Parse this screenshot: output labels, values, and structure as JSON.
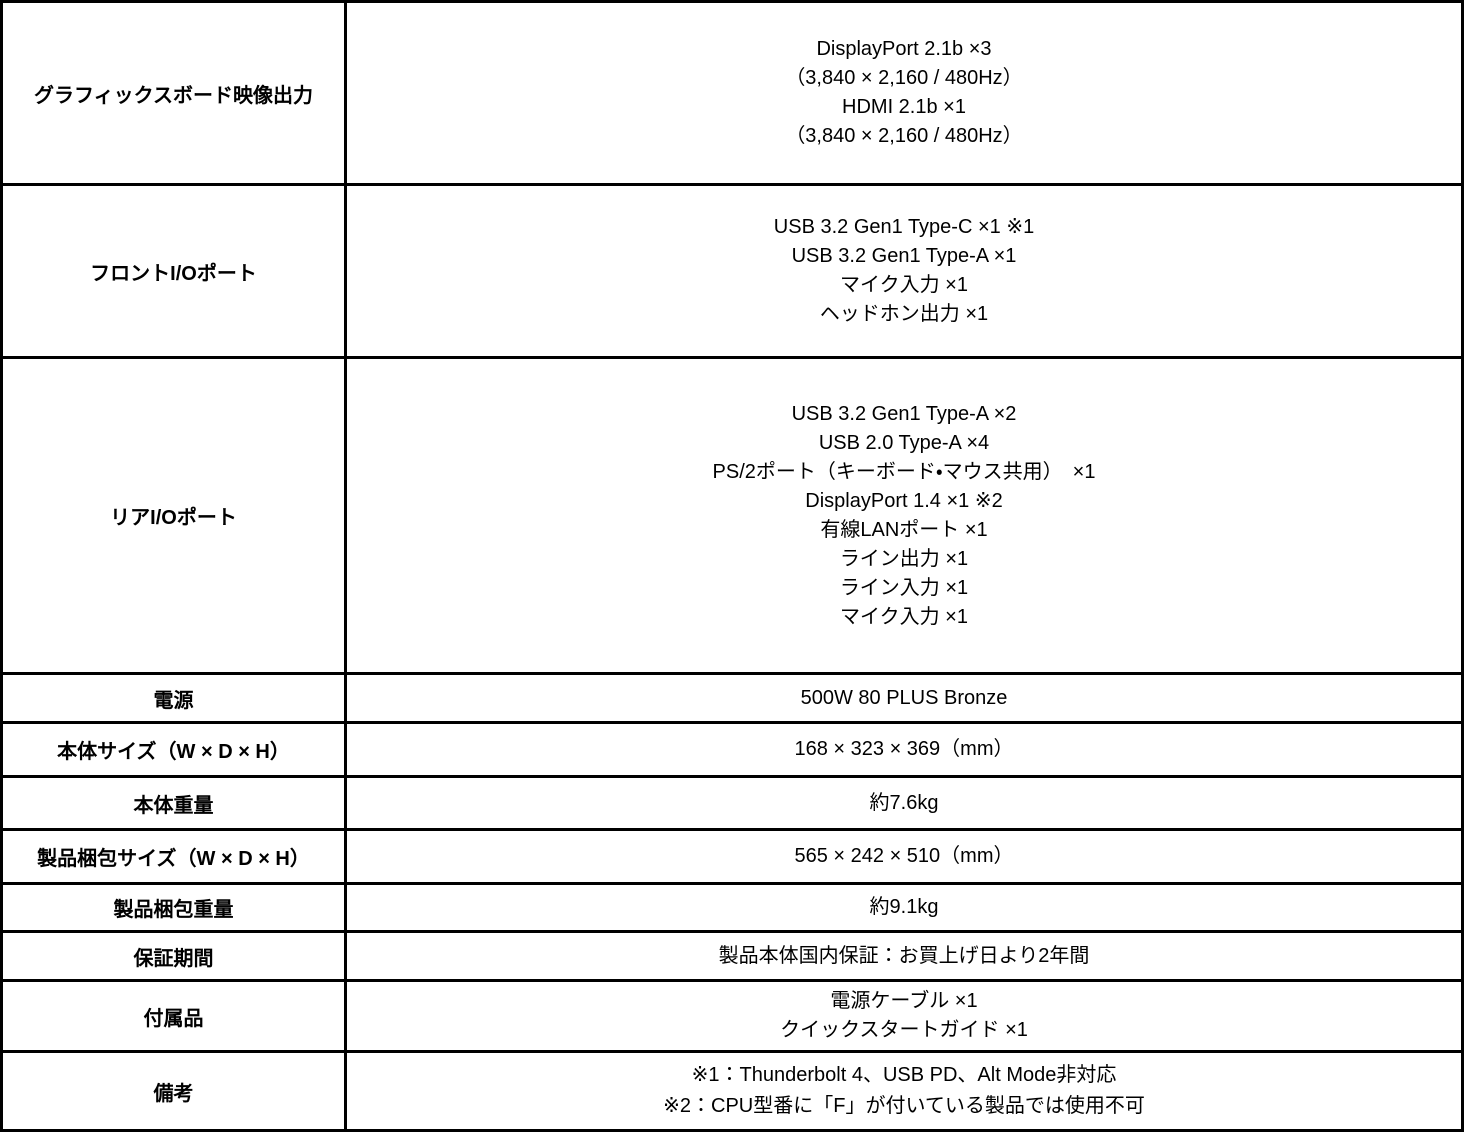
{
  "colors": {
    "border": "#000000",
    "background": "#ffffff",
    "text": "#000000"
  },
  "table": {
    "rows": [
      {
        "label": "グラフィックスボード映像出力",
        "lines": [
          "DisplayPort 2.1b ×3",
          "（3,840 × 2,160 / 480Hz）",
          "HDMI 2.1b ×1",
          "（3,840 × 2,160 / 480Hz）"
        ],
        "align": "center"
      },
      {
        "label": "フロントI/Oポート",
        "lines": [
          "USB 3.2 Gen1 Type-C ×1 ※1",
          "USB 3.2 Gen1 Type-A ×1",
          "マイク入力 ×1",
          "ヘッドホン出力 ×1"
        ],
        "align": "center"
      },
      {
        "label": "リアI/Oポート",
        "lines": [
          "USB 3.2 Gen1 Type-A ×2",
          "USB 2.0 Type-A ×4",
          "PS/2ポート（キーボード・マウス共用）　×1",
          "DisplayPort 1.4 ×1 ※2",
          "有線LANポート ×1",
          "ライン出力 ×1",
          "ライン入力 ×1",
          "マイク入力 ×1"
        ],
        "align": "center"
      },
      {
        "label": "電源",
        "lines": [
          "500W 80 PLUS Bronze"
        ],
        "align": "center"
      },
      {
        "label": "本体サイズ（W × D × H）",
        "lines": [
          "168 × 323 × 369（mm）"
        ],
        "align": "center"
      },
      {
        "label": "本体重量",
        "lines": [
          "約7.6kg"
        ],
        "align": "center"
      },
      {
        "label": "製品梱包サイズ（W × D × H）",
        "lines": [
          "565 × 242 × 510（mm）"
        ],
        "align": "center"
      },
      {
        "label": "製品梱包重量",
        "lines": [
          "約9.1kg"
        ],
        "align": "center"
      },
      {
        "label": "保証期間",
        "lines": [
          "製品本体国内保証：お買上げ日より2年間"
        ],
        "align": "center"
      },
      {
        "label": "付属品",
        "lines": [
          "電源ケーブル ×1",
          "クイックスタートガイド ×1"
        ],
        "align": "center"
      },
      {
        "label": "備考",
        "lines": [
          "※1：Thunderbolt 4、USB PD、Alt Mode非対応",
          "※2：CPU型番に「F」が付いている製品では使用不可"
        ],
        "align": "left"
      }
    ]
  }
}
